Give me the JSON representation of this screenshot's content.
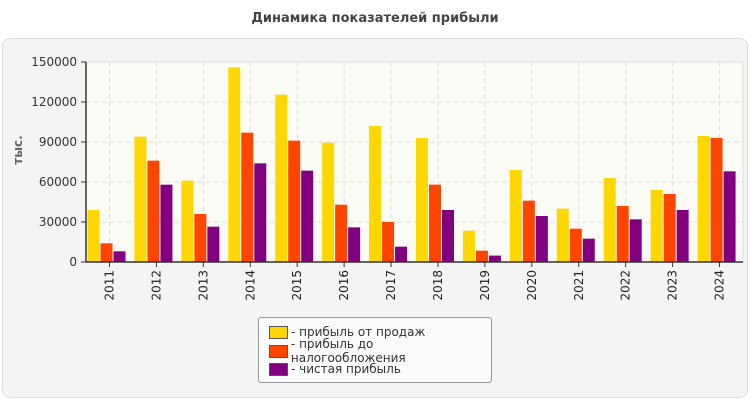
{
  "chart_data": {
    "type": "bar",
    "title": "Динамика показателей прибыли",
    "ylabel": "тыс.",
    "ylim": [
      0,
      150000
    ],
    "yticks": [
      0,
      30000,
      60000,
      90000,
      120000,
      150000
    ],
    "grid": true,
    "legend_position": "bottom",
    "categories": [
      "2011",
      "2012",
      "2013",
      "2014",
      "2015",
      "2016",
      "2017",
      "2018",
      "2019",
      "2020",
      "2021",
      "2022",
      "2023",
      "2024"
    ],
    "series": [
      {
        "name": "- прибыль от продаж",
        "color": "#ffd700",
        "values": [
          39000,
          94000,
          61000,
          146000,
          125500,
          89500,
          102000,
          93000,
          23500,
          69000,
          40000,
          63000,
          54000,
          94500
        ]
      },
      {
        "name": "- прибыль до налогообложения",
        "color": "#ff4500",
        "values": [
          14000,
          76000,
          36000,
          97000,
          91000,
          43000,
          30000,
          58000,
          8500,
          46000,
          25000,
          42000,
          51000,
          93000
        ]
      },
      {
        "name": "- чистая прибыль",
        "color": "#800080",
        "values": [
          8000,
          58000,
          26500,
          74000,
          68500,
          26000,
          11500,
          39000,
          4800,
          34500,
          17500,
          32000,
          39000,
          68000
        ]
      }
    ]
  }
}
